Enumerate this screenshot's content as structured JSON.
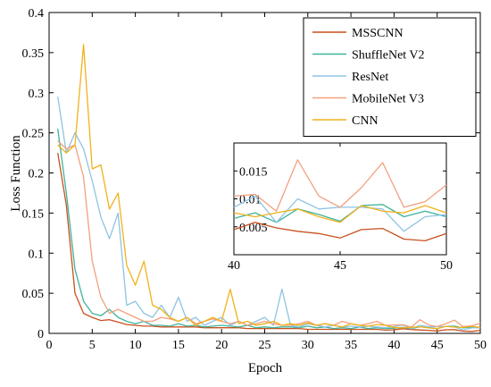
{
  "chart_data": {
    "type": "line",
    "xlabel": "Epoch",
    "ylabel": "Loss Function",
    "xlim": [
      0,
      50
    ],
    "ylim": [
      0,
      0.4
    ],
    "xticks": [
      "0",
      "5",
      "10",
      "15",
      "20",
      "25",
      "30",
      "35",
      "40",
      "45",
      "50"
    ],
    "yticks": [
      "0",
      "0.05",
      "0.1",
      "0.15",
      "0.2",
      "0.25",
      "0.3",
      "0.35",
      "0.4"
    ],
    "legend": "top-right",
    "grid": false,
    "x": [
      1,
      2,
      3,
      4,
      5,
      6,
      7,
      8,
      9,
      10,
      11,
      12,
      13,
      14,
      15,
      16,
      17,
      18,
      19,
      20,
      21,
      22,
      23,
      24,
      25,
      26,
      27,
      28,
      29,
      30,
      31,
      32,
      33,
      34,
      35,
      36,
      37,
      38,
      39,
      40,
      41,
      42,
      43,
      44,
      45,
      46,
      47,
      48,
      49,
      50
    ],
    "series": [
      {
        "name": "MSSCNN",
        "color": "#c8511f",
        "values": [
          0.225,
          0.16,
          0.05,
          0.025,
          0.02,
          0.016,
          0.017,
          0.014,
          0.011,
          0.01,
          0.009,
          0.009,
          0.008,
          0.008,
          0.008,
          0.008,
          0.008,
          0.007,
          0.007,
          0.007,
          0.007,
          0.007,
          0.006,
          0.006,
          0.006,
          0.006,
          0.006,
          0.006,
          0.006,
          0.005,
          0.005,
          0.005,
          0.005,
          0.005,
          0.005,
          0.005,
          0.005,
          0.005,
          0.004,
          0.0045,
          0.0058,
          0.0048,
          0.0042,
          0.0038,
          0.003,
          0.0045,
          0.0047,
          0.0028,
          0.0025,
          0.0038
        ]
      },
      {
        "name": "ShuffleNet V2",
        "color": "#3fb39a",
        "values": [
          0.255,
          0.175,
          0.08,
          0.04,
          0.025,
          0.022,
          0.03,
          0.02,
          0.015,
          0.012,
          0.015,
          0.01,
          0.01,
          0.009,
          0.012,
          0.009,
          0.01,
          0.008,
          0.009,
          0.01,
          0.009,
          0.008,
          0.01,
          0.007,
          0.008,
          0.007,
          0.008,
          0.008,
          0.007,
          0.009,
          0.007,
          0.008,
          0.006,
          0.007,
          0.006,
          0.008,
          0.006,
          0.007,
          0.006,
          0.0065,
          0.0075,
          0.0058,
          0.0082,
          0.0072,
          0.006,
          0.0088,
          0.009,
          0.0068,
          0.0078,
          0.0068
        ]
      },
      {
        "name": "ResNet",
        "color": "#8ec3e3",
        "values": [
          0.295,
          0.225,
          0.25,
          0.23,
          0.19,
          0.145,
          0.118,
          0.15,
          0.035,
          0.04,
          0.025,
          0.02,
          0.035,
          0.02,
          0.045,
          0.015,
          0.02,
          0.01,
          0.015,
          0.02,
          0.01,
          0.015,
          0.01,
          0.015,
          0.02,
          0.01,
          0.055,
          0.01,
          0.008,
          0.012,
          0.01,
          0.008,
          0.01,
          0.008,
          0.009,
          0.008,
          0.009,
          0.008,
          0.007,
          0.0085,
          0.0105,
          0.0058,
          0.01,
          0.0082,
          0.0085,
          0.0085,
          0.0082,
          0.0042,
          0.0068,
          0.0072
        ]
      },
      {
        "name": "MobileNet V3",
        "color": "#f2a07f",
        "values": [
          0.24,
          0.23,
          0.235,
          0.195,
          0.09,
          0.045,
          0.025,
          0.03,
          0.025,
          0.02,
          0.015,
          0.015,
          0.02,
          0.018,
          0.015,
          0.02,
          0.012,
          0.015,
          0.018,
          0.015,
          0.012,
          0.015,
          0.01,
          0.012,
          0.015,
          0.012,
          0.01,
          0.01,
          0.012,
          0.015,
          0.01,
          0.012,
          0.01,
          0.015,
          0.012,
          0.01,
          0.012,
          0.015,
          0.01,
          0.0105,
          0.0108,
          0.0078,
          0.017,
          0.0105,
          0.0085,
          0.012,
          0.0165,
          0.0085,
          0.0095,
          0.0125
        ]
      },
      {
        "name": "CNN",
        "color": "#f0b21a",
        "values": [
          0.235,
          0.225,
          0.235,
          0.36,
          0.205,
          0.21,
          0.155,
          0.175,
          0.085,
          0.06,
          0.09,
          0.035,
          0.03,
          0.02,
          0.015,
          0.02,
          0.01,
          0.015,
          0.02,
          0.015,
          0.055,
          0.012,
          0.015,
          0.01,
          0.012,
          0.015,
          0.01,
          0.012,
          0.01,
          0.013,
          0.01,
          0.012,
          0.01,
          0.008,
          0.012,
          0.01,
          0.009,
          0.011,
          0.01,
          0.0075,
          0.0068,
          0.0075,
          0.0082,
          0.0068,
          0.0058,
          0.0088,
          0.0078,
          0.0075,
          0.0088,
          0.0075
        ]
      }
    ],
    "inset": {
      "xlim": [
        40,
        50
      ],
      "ylim": [
        0,
        0.02
      ],
      "xticks": [
        "40",
        "45",
        "50"
      ],
      "yticks": [
        "0.005",
        "0.01",
        "0.015"
      ]
    }
  }
}
